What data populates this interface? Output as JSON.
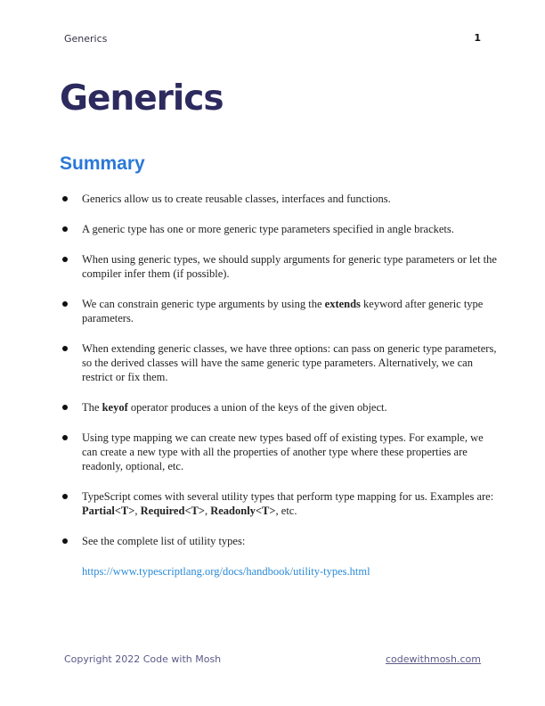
{
  "header": {
    "chapter": "Generics",
    "page_number": "1"
  },
  "title": "Generics",
  "section": "Summary",
  "bullets": [
    {
      "text": "Generics allow us to create reusable classes, interfaces and functions."
    },
    {
      "text": "A generic type has one or more generic type parameters specified in angle brackets."
    },
    {
      "text": "When using generic types, we should supply arguments for generic type parameters or let the compiler infer them (if possible)."
    },
    {
      "before": "We can constrain generic type arguments by using the ",
      "bold": "extends",
      "after": " keyword after generic type parameters."
    },
    {
      "text": "When extending generic classes, we have three options: can pass on generic type parameters, so the derived classes will have the same generic type parameters. Alternatively, we can restrict or fix them."
    },
    {
      "before": "The ",
      "bold": "keyof",
      "after": " operator produces a union of the keys of the given object."
    },
    {
      "text": "Using type mapping we can create new types based off of existing types. For example, we can create a new type with all the properties of another type where these properties are readonly, optional, etc."
    },
    {
      "before": "TypeScript comes with several utility types that perform type mapping for us. Examples are: ",
      "bold1": "Partial<T>",
      "sep1": ", ",
      "bold2": "Required<T>",
      "sep2": ", ",
      "bold3": "Readonly<T>",
      "after": ", etc."
    },
    {
      "text": "See the complete list of utility types:",
      "link": "https://www.typescriptlang.org/docs/handbook/utility-types.html"
    }
  ],
  "footer": {
    "copyright": "Copyright 2022 Code with Mosh",
    "site": "codewithmosh.com"
  }
}
